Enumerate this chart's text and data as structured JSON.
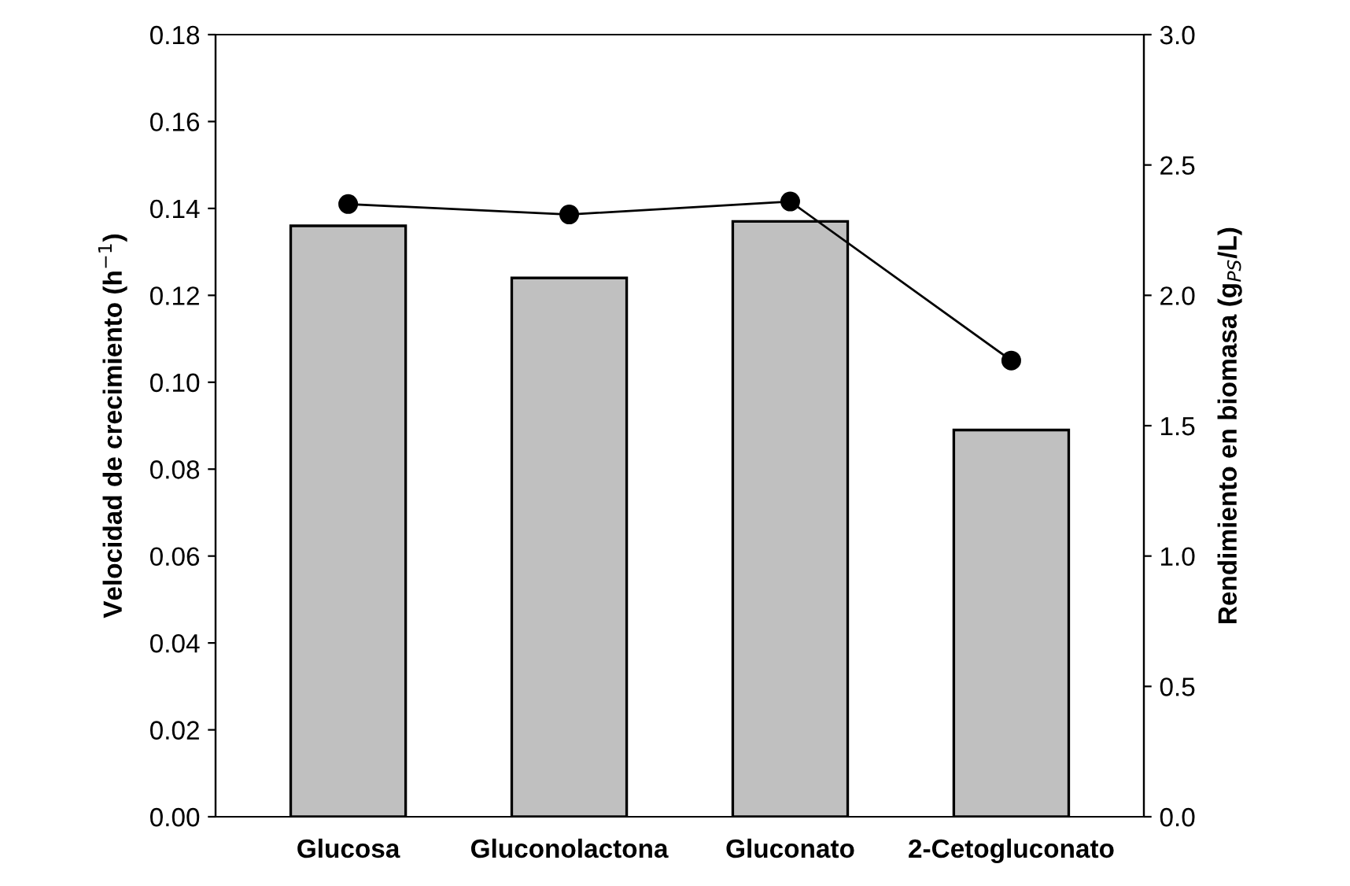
{
  "chart_data": {
    "type": "bar",
    "categories": [
      "Glucosa",
      "Gluconolactona",
      "Gluconato",
      "2-Cetogluconato"
    ],
    "ylabel": "Velocidad de crecimiento (h$^{−1}$)",
    "y2label": "Rendimiento en biomasa (g$_{PS}$/L)",
    "series": [
      {
        "color": "#c0c0c0",
        "values": [
          0.136,
          0.124,
          0.137,
          0.089
        ]
      },
      {
        "type": "line",
        "axis": "y2",
        "color": "#000000",
        "marker": "circle",
        "line_style": "solid",
        "values": [
          2.35,
          2.31,
          2.36,
          1.75
        ]
      }
    ],
    "ylim": [
      0,
      0.18
    ],
    "yticks": [
      {
        "value": 0,
        "label": "0.00"
      },
      {
        "value": 0.02,
        "label": "0.02"
      },
      {
        "value": 0.04,
        "label": "0.04"
      },
      {
        "value": 0.06,
        "label": "0.06"
      },
      {
        "value": 0.08,
        "label": "0.08"
      },
      {
        "value": 0.1,
        "label": "0.10"
      },
      {
        "value": 0.12,
        "label": "0.12"
      },
      {
        "value": 0.14,
        "label": "0.14"
      },
      {
        "value": 0.16,
        "label": "0.16"
      },
      {
        "value": 0.18,
        "label": "0.18"
      }
    ],
    "y2lim": [
      0,
      3
    ],
    "y2ticks": [
      {
        "value": 0,
        "label": "0.0"
      },
      {
        "value": 0.5,
        "label": "0.5"
      },
      {
        "value": 1,
        "label": "1.0"
      },
      {
        "value": 1.5,
        "label": "1.5"
      },
      {
        "value": 2,
        "label": "2.0"
      },
      {
        "value": 2.5,
        "label": "2.5"
      },
      {
        "value": 3,
        "label": "3.0"
      }
    ],
    "grid": false,
    "legend": false
  }
}
